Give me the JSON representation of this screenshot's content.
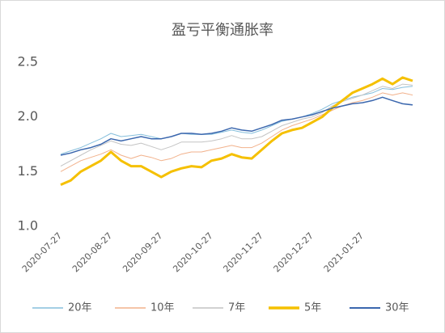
{
  "chart_data": {
    "type": "line",
    "title": "盈亏平衡通胀率",
    "categories": [
      "2020-07-27",
      null,
      null,
      null,
      null,
      "2020-08-27",
      null,
      null,
      null,
      null,
      "2020-09-27",
      null,
      null,
      null,
      null,
      "2020-10-27",
      null,
      null,
      null,
      null,
      "2020-11-27",
      null,
      null,
      null,
      null,
      "2020-12-27",
      null,
      null,
      null,
      null,
      "2021-01-27",
      null,
      null,
      null,
      null,
      null
    ],
    "series": [
      {
        "name": "20年",
        "color": "#86bfdc",
        "width": 1,
        "values": [
          1.66,
          1.69,
          1.72,
          1.76,
          1.8,
          1.85,
          1.82,
          1.83,
          1.84,
          1.82,
          1.8,
          1.82,
          1.85,
          1.84,
          1.84,
          1.84,
          1.86,
          1.88,
          1.86,
          1.85,
          1.88,
          1.92,
          1.96,
          1.98,
          2.0,
          2.03,
          2.07,
          2.12,
          2.15,
          2.18,
          2.2,
          2.22,
          2.26,
          2.25,
          2.27,
          2.28
        ]
      },
      {
        "name": "10年",
        "color": "#f2b28c",
        "width": 1,
        "values": [
          1.5,
          1.55,
          1.6,
          1.63,
          1.66,
          1.7,
          1.65,
          1.62,
          1.65,
          1.63,
          1.6,
          1.62,
          1.66,
          1.68,
          1.68,
          1.7,
          1.72,
          1.74,
          1.72,
          1.72,
          1.76,
          1.82,
          1.88,
          1.92,
          1.95,
          1.98,
          2.02,
          2.06,
          2.1,
          2.13,
          2.15,
          2.18,
          2.22,
          2.2,
          2.22,
          2.2
        ]
      },
      {
        "name": "7年",
        "color": "#c4c4c4",
        "width": 1,
        "values": [
          1.55,
          1.6,
          1.65,
          1.7,
          1.74,
          1.78,
          1.75,
          1.74,
          1.76,
          1.73,
          1.7,
          1.73,
          1.77,
          1.77,
          1.77,
          1.78,
          1.8,
          1.83,
          1.8,
          1.8,
          1.82,
          1.87,
          1.92,
          1.95,
          1.98,
          2.0,
          2.04,
          2.1,
          2.14,
          2.17,
          2.2,
          2.24,
          2.28,
          2.26,
          2.3,
          2.29
        ]
      },
      {
        "name": "5年",
        "color": "#f5c000",
        "width": 3,
        "values": [
          1.38,
          1.42,
          1.5,
          1.55,
          1.6,
          1.68,
          1.6,
          1.55,
          1.55,
          1.5,
          1.45,
          1.5,
          1.53,
          1.55,
          1.54,
          1.6,
          1.62,
          1.66,
          1.63,
          1.62,
          1.7,
          1.78,
          1.85,
          1.88,
          1.9,
          1.95,
          2.0,
          2.08,
          2.15,
          2.22,
          2.26,
          2.3,
          2.35,
          2.3,
          2.36,
          2.33
        ]
      },
      {
        "name": "30年",
        "color": "#3b67ae",
        "width": 1.5,
        "values": [
          1.65,
          1.67,
          1.7,
          1.72,
          1.75,
          1.8,
          1.78,
          1.8,
          1.82,
          1.8,
          1.8,
          1.82,
          1.85,
          1.85,
          1.84,
          1.85,
          1.87,
          1.9,
          1.88,
          1.87,
          1.9,
          1.93,
          1.97,
          1.98,
          2.0,
          2.02,
          2.05,
          2.08,
          2.1,
          2.12,
          2.13,
          2.15,
          2.18,
          2.15,
          2.12,
          2.11
        ]
      }
    ],
    "ylim": [
      1,
      2.5
    ],
    "yticks": [
      {
        "value": 1,
        "label": "1.0"
      },
      1.5,
      {
        "value": 2,
        "label": "2.0"
      },
      2.5
    ],
    "grid": false
  }
}
